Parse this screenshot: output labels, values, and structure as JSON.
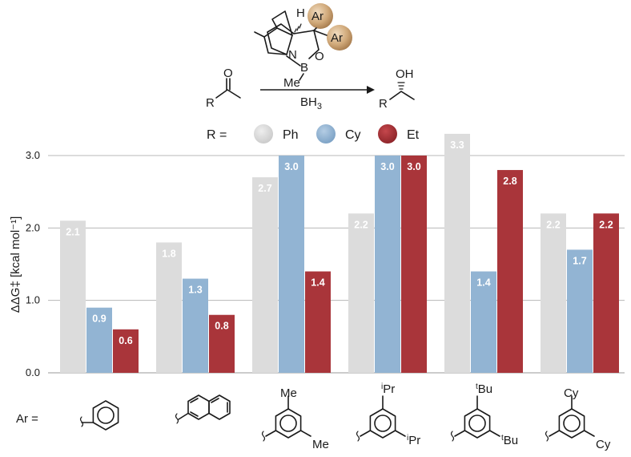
{
  "scheme": {
    "catalyst": {
      "h": "H",
      "ar1": "Ar",
      "ar2": "Ar",
      "n": "N",
      "b": "B",
      "o": "O",
      "me": "Me"
    },
    "reactant": {
      "o": "O",
      "r": "R"
    },
    "reagent": "BH",
    "reagent_sub": "3",
    "product": {
      "oh": "OH",
      "r": "R"
    }
  },
  "legend": {
    "prefix": "R =",
    "items": [
      {
        "label": "Ph",
        "color": "#dcdcdc"
      },
      {
        "label": "Cy",
        "color": "#92b4d3"
      },
      {
        "label": "Et",
        "color": "#a9353a"
      }
    ]
  },
  "chart_data": {
    "type": "bar",
    "title": "",
    "xlabel": "",
    "ylabel": "ΔΔG‡ [kcal mol⁻¹]",
    "ylim": [
      0,
      3.3
    ],
    "yticks": [
      "0.0",
      "1.0",
      "2.0",
      "3.0"
    ],
    "grid": true,
    "legend_position": "top",
    "categories": [
      "phenyl",
      "2-naphthyl",
      "3,5-Me2-phenyl",
      "3,5-iPr2-phenyl",
      "3,5-tBu2-phenyl",
      "3,5-Cy2-phenyl"
    ],
    "series": [
      {
        "name": "Ph",
        "color": "#dcdcdc",
        "values": [
          2.1,
          1.8,
          2.7,
          2.2,
          3.3,
          2.2
        ],
        "labels": [
          "2.1",
          "1.8",
          "2.7",
          "2.2",
          "3.3",
          "2.2"
        ]
      },
      {
        "name": "Cy",
        "color": "#92b4d3",
        "values": [
          0.9,
          1.3,
          3.0,
          3.0,
          1.4,
          1.7
        ],
        "labels": [
          "0.9",
          "1.3",
          "3.0",
          "3.0",
          "1.4",
          "1.7"
        ]
      },
      {
        "name": "Et",
        "color": "#a9353a",
        "values": [
          0.6,
          0.8,
          1.4,
          3.0,
          2.8,
          2.2
        ],
        "labels": [
          "0.6",
          "0.8",
          "1.4",
          "3.0",
          "2.8",
          "2.2"
        ]
      }
    ]
  },
  "ar_row": {
    "prefix": "Ar =",
    "substituents": [
      {
        "top": "",
        "top_sup": "",
        "bottom": "",
        "bottom_sup": ""
      },
      {
        "top": "",
        "top_sup": "",
        "bottom": "",
        "bottom_sup": ""
      },
      {
        "top": "Me",
        "top_sup": "",
        "bottom": "Me",
        "bottom_sup": ""
      },
      {
        "top": "Pr",
        "top_sup": "i",
        "bottom": "Pr",
        "bottom_sup": "i"
      },
      {
        "top": "Bu",
        "top_sup": "t",
        "bottom": "Bu",
        "bottom_sup": "t"
      },
      {
        "top": "Cy",
        "top_sup": "",
        "bottom": "Cy",
        "bottom_sup": ""
      }
    ]
  }
}
